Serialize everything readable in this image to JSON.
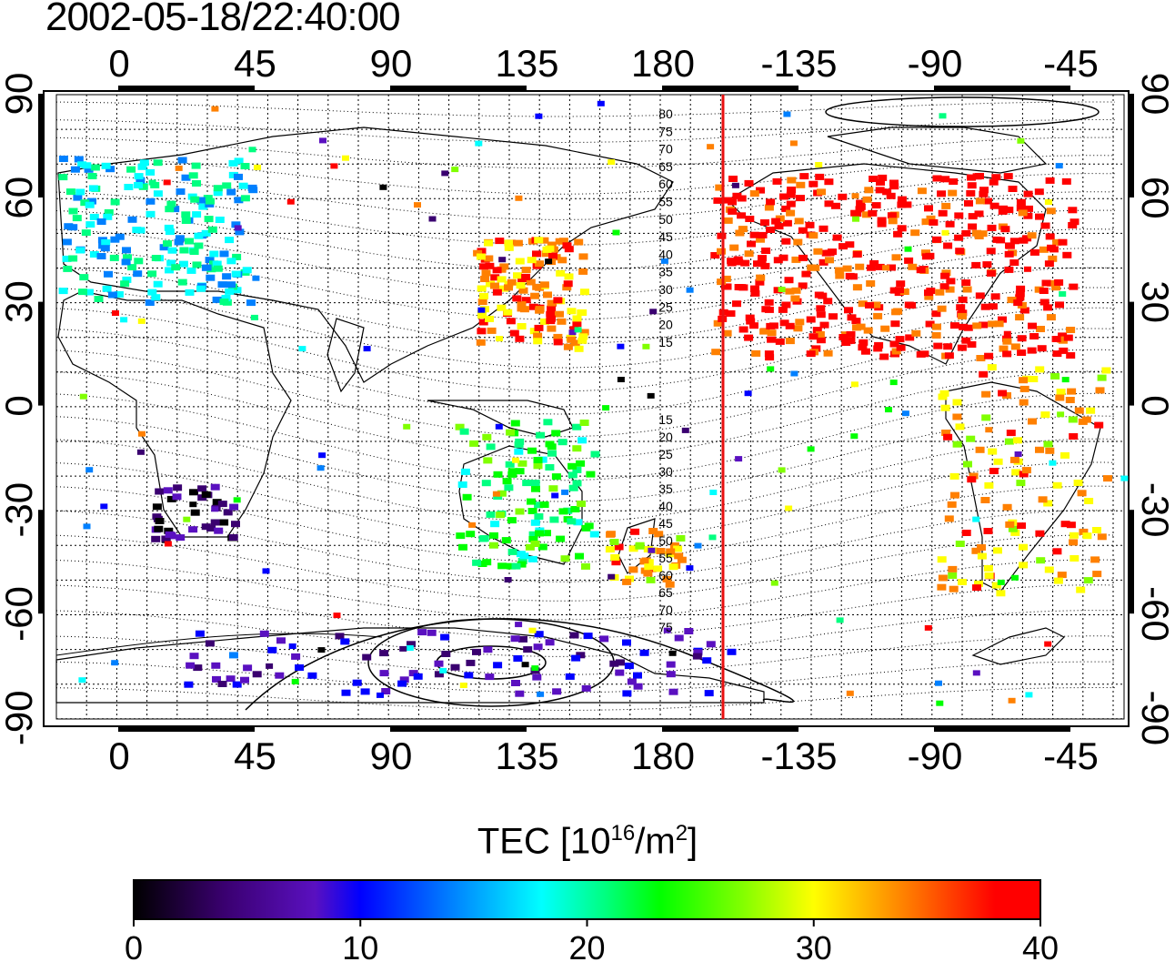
{
  "title": "2002-05-18/22:40:00",
  "map": {
    "top_lon_labels": [
      "0",
      "45",
      "90",
      "135",
      "180",
      "-135",
      "-90",
      "-45"
    ],
    "bottom_lon_labels": [
      "0",
      "45",
      "90",
      "135",
      "180",
      "-135",
      "-90",
      "-45"
    ],
    "lat_labels": [
      "90",
      "60",
      "30",
      "0",
      "-30",
      "-60",
      "-90"
    ],
    "contour_labels_north": [
      "80",
      "75",
      "70",
      "65",
      "60",
      "55",
      "50",
      "45",
      "40",
      "35",
      "30",
      "25",
      "20",
      "15"
    ],
    "contour_labels_south": [
      "15",
      "20",
      "25",
      "30",
      "35",
      "40",
      "45",
      "50",
      "55",
      "60",
      "65",
      "70",
      "75"
    ],
    "terminator_color": "#e81010"
  },
  "colorbar": {
    "label_prefix": "TEC  [10",
    "label_exp": "16",
    "label_mid": "/m",
    "label_exp2": "2",
    "label_suffix": "]",
    "ticks": [
      "0",
      "10",
      "20",
      "30",
      "40"
    ],
    "range": [
      0,
      40
    ],
    "colors": [
      "#000000",
      "#3a0070",
      "#5a10c0",
      "#0000ff",
      "#0080ff",
      "#00ffff",
      "#00ff80",
      "#00ff00",
      "#80ff00",
      "#ffff00",
      "#ff8000",
      "#ff0000"
    ]
  },
  "tec_regions": [
    {
      "name": "europe",
      "value": 18
    },
    {
      "name": "japan",
      "value": 36
    },
    {
      "name": "north-america",
      "value": 40
    },
    {
      "name": "australia",
      "value": 24
    },
    {
      "name": "antarctica",
      "value": 8
    },
    {
      "name": "south-africa",
      "value": 4
    },
    {
      "name": "south-america",
      "value": 35
    },
    {
      "name": "new-zealand",
      "value": 34
    }
  ]
}
